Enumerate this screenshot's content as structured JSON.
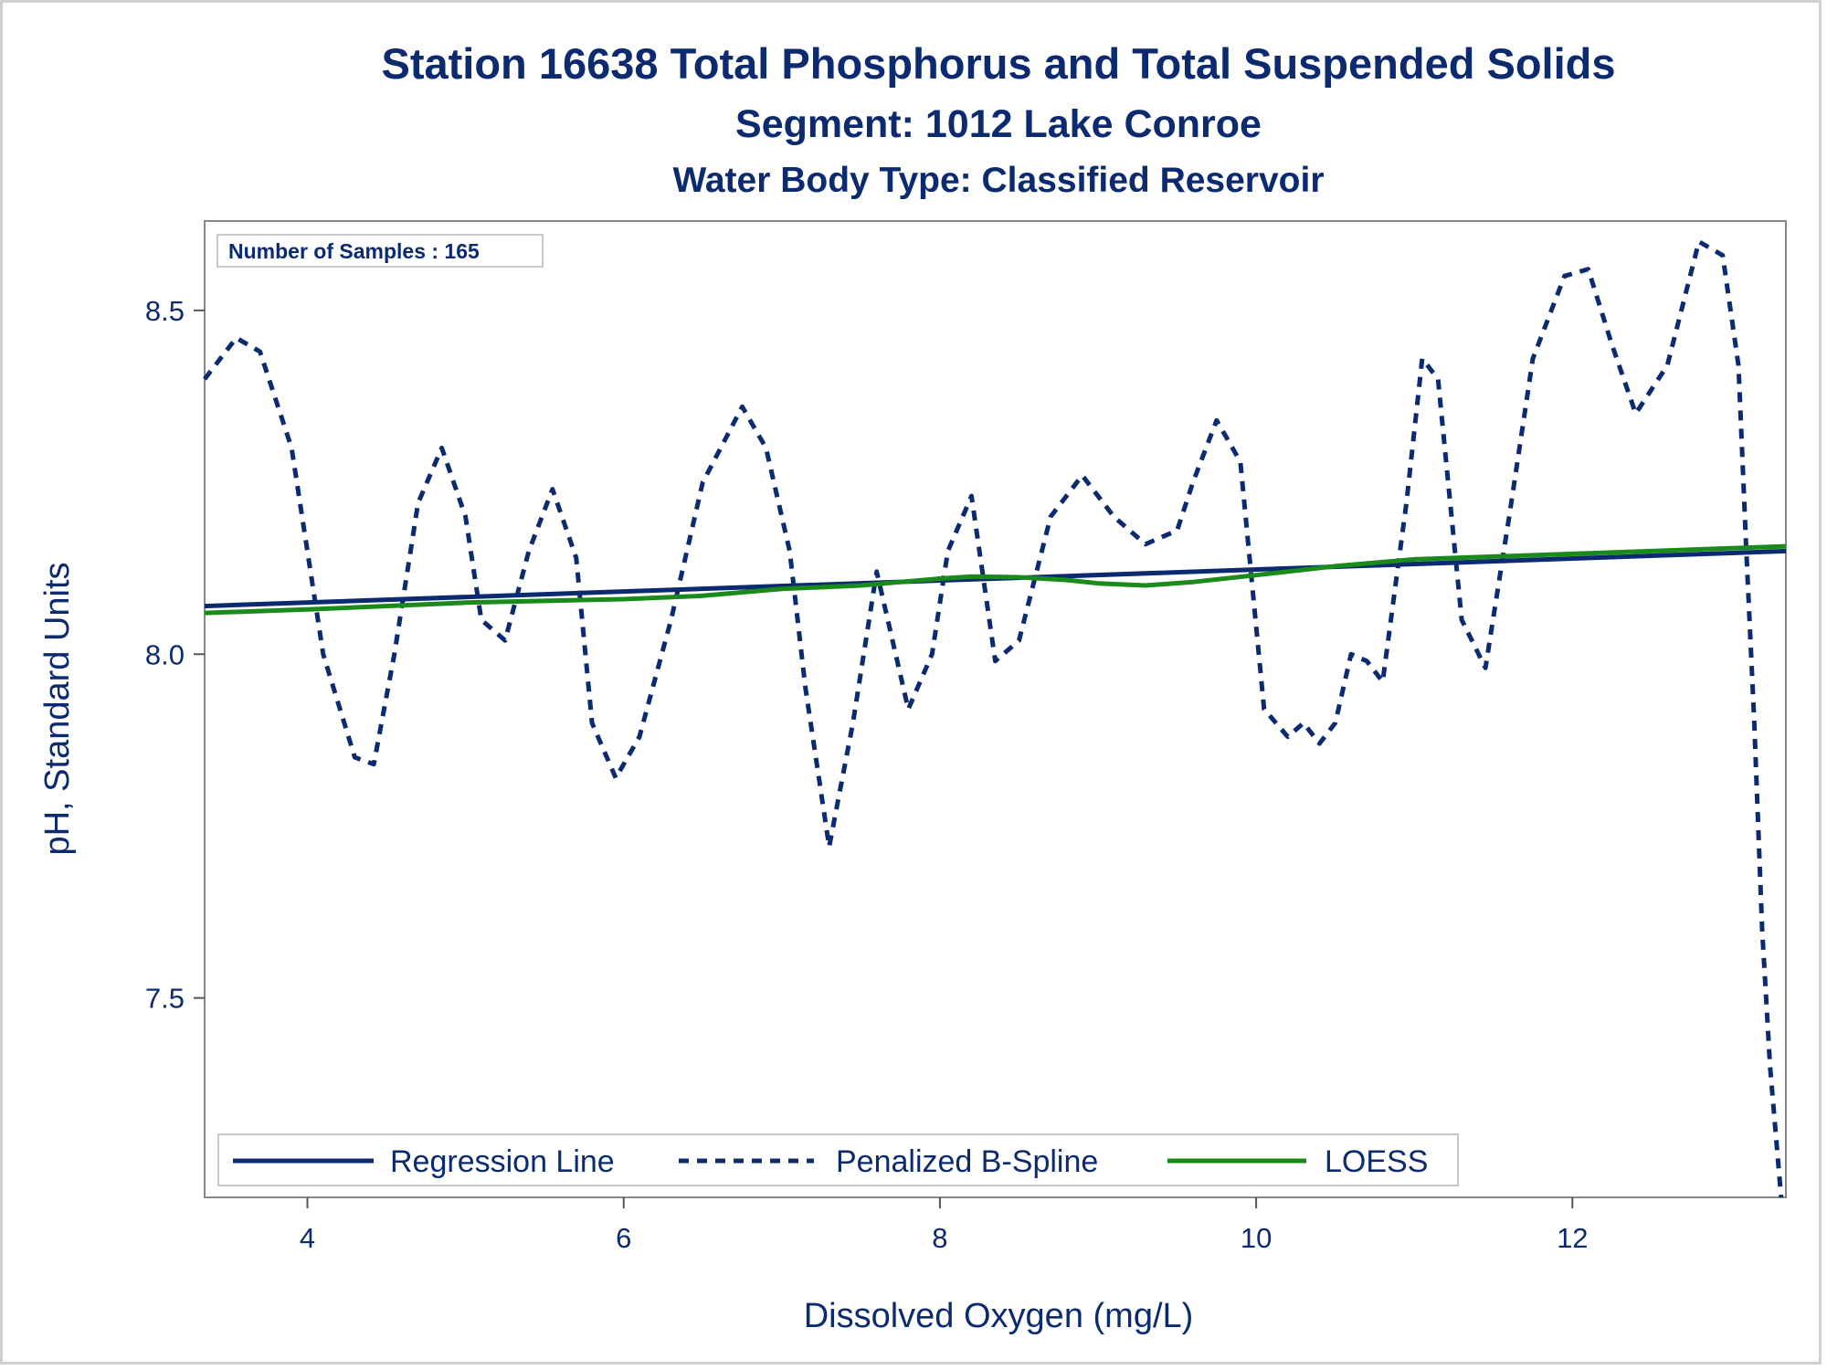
{
  "chart_data": {
    "type": "line",
    "title": "Station 16638  Total Phosphorus and Total Suspended Solids",
    "subtitle": "Segment: 1012  Lake Conroe",
    "subtitle2": "Water Body Type: Classified Reservoir",
    "xlabel": "Dissolved Oxygen (mg/L)",
    "ylabel": "pH, Standard Units",
    "xlim": [
      3.35,
      13.35
    ],
    "ylim": [
      7.21,
      8.63
    ],
    "xticks": [
      4,
      6,
      8,
      10,
      12
    ],
    "yticks": [
      7.5,
      8.0,
      8.5
    ],
    "xtick_labels": [
      "4",
      "6",
      "8",
      "10",
      "12"
    ],
    "ytick_labels": [
      "7.5",
      "8.0",
      "8.5"
    ],
    "annotation": "Number of Samples : 165",
    "legend_position": "bottom-left inside",
    "grid": false,
    "series": [
      {
        "name": "Regression Line",
        "style": "solid",
        "color": "#0b2a6f",
        "x": [
          3.35,
          13.35
        ],
        "y": [
          8.07,
          8.15
        ]
      },
      {
        "name": "Penalized B-Spline",
        "style": "dashed",
        "color": "#0b2a6f",
        "x": [
          3.35,
          3.55,
          3.7,
          3.9,
          4.1,
          4.3,
          4.42,
          4.55,
          4.7,
          4.85,
          5.0,
          5.1,
          5.25,
          5.4,
          5.55,
          5.7,
          5.8,
          5.95,
          6.1,
          6.3,
          6.5,
          6.75,
          6.9,
          7.05,
          7.15,
          7.3,
          7.45,
          7.6,
          7.8,
          7.95,
          8.05,
          8.2,
          8.35,
          8.5,
          8.7,
          8.9,
          9.1,
          9.3,
          9.5,
          9.6,
          9.75,
          9.9,
          10.05,
          10.2,
          10.3,
          10.4,
          10.5,
          10.6,
          10.7,
          10.8,
          10.95,
          11.05,
          11.15,
          11.3,
          11.45,
          11.6,
          11.75,
          11.95,
          12.1,
          12.25,
          12.4,
          12.6,
          12.8,
          12.95,
          13.05,
          13.1,
          13.15,
          13.2,
          13.25,
          13.32
        ],
        "y": [
          8.4,
          8.46,
          8.44,
          8.3,
          8.0,
          7.85,
          7.84,
          8.0,
          8.22,
          8.3,
          8.2,
          8.05,
          8.02,
          8.15,
          8.24,
          8.14,
          7.9,
          7.82,
          7.88,
          8.05,
          8.25,
          8.36,
          8.3,
          8.15,
          7.95,
          7.72,
          7.9,
          8.12,
          7.92,
          8.0,
          8.15,
          8.23,
          7.99,
          8.02,
          8.2,
          8.26,
          8.2,
          8.16,
          8.18,
          8.25,
          8.34,
          8.28,
          7.92,
          7.88,
          7.9,
          7.87,
          7.9,
          8.0,
          7.99,
          7.96,
          8.22,
          8.43,
          8.4,
          8.05,
          7.98,
          8.2,
          8.43,
          8.55,
          8.56,
          8.45,
          8.35,
          8.42,
          8.6,
          8.58,
          8.42,
          8.15,
          7.9,
          7.6,
          7.4,
          7.21
        ]
      },
      {
        "name": "LOESS",
        "style": "solid",
        "color": "#1a8a1a",
        "x": [
          3.35,
          4.0,
          5.0,
          6.0,
          6.5,
          7.0,
          7.5,
          8.0,
          8.2,
          8.5,
          8.8,
          9.0,
          9.3,
          9.6,
          10.0,
          10.5,
          11.0,
          11.5,
          12.0,
          12.5,
          13.0,
          13.35
        ],
        "y": [
          8.06,
          8.065,
          8.075,
          8.08,
          8.085,
          8.095,
          8.1,
          8.11,
          8.113,
          8.112,
          8.108,
          8.103,
          8.1,
          8.105,
          8.115,
          8.128,
          8.138,
          8.142,
          8.146,
          8.15,
          8.154,
          8.157
        ]
      }
    ]
  }
}
